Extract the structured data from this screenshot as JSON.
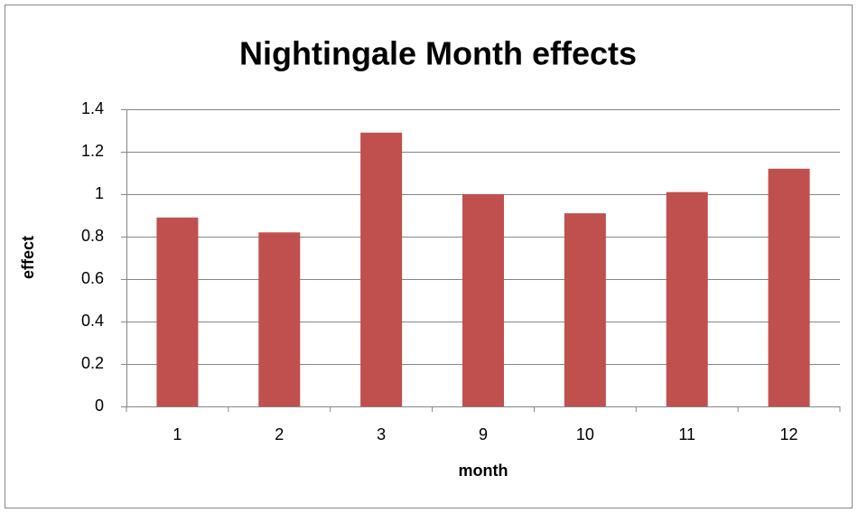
{
  "chart_data": {
    "type": "bar",
    "title": "Nightingale Month effects",
    "x_label": "month",
    "y_label": "effect",
    "categories": [
      "1",
      "2",
      "3",
      "9",
      "10",
      "11",
      "12"
    ],
    "values": [
      0.89,
      0.82,
      1.29,
      1.0,
      0.91,
      1.01,
      1.12
    ],
    "color": "#c0504d",
    "ylim": [
      0,
      1.4
    ],
    "yticks": [
      0,
      0.2,
      0.4,
      0.6,
      0.8,
      1,
      1.2,
      1.4
    ],
    "grid": true
  }
}
